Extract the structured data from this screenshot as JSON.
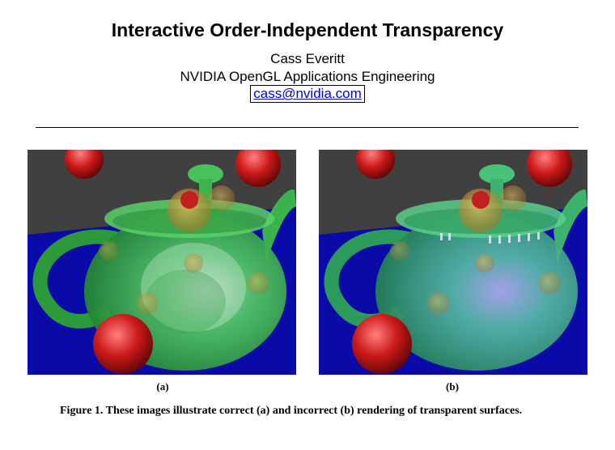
{
  "header": {
    "title": "Interactive Order-Independent Transparency",
    "author": "Cass Everitt",
    "affiliation": "NVIDIA OpenGL Applications Engineering",
    "email": "cass@nvidia.com"
  },
  "figures": [
    {
      "label": "(a)",
      "image": "teapot-correct-transparency"
    },
    {
      "label": "(b)",
      "image": "teapot-incorrect-transparency"
    }
  ],
  "caption": "Figure 1.  These images illustrate correct (a) and incorrect (b) rendering of transparent surfaces.",
  "colors": {
    "background": "#404040",
    "floor": "#0a0aa8",
    "teapot": "#33cc44",
    "spheres": "#cc1a1a",
    "link": "#0000ee"
  }
}
